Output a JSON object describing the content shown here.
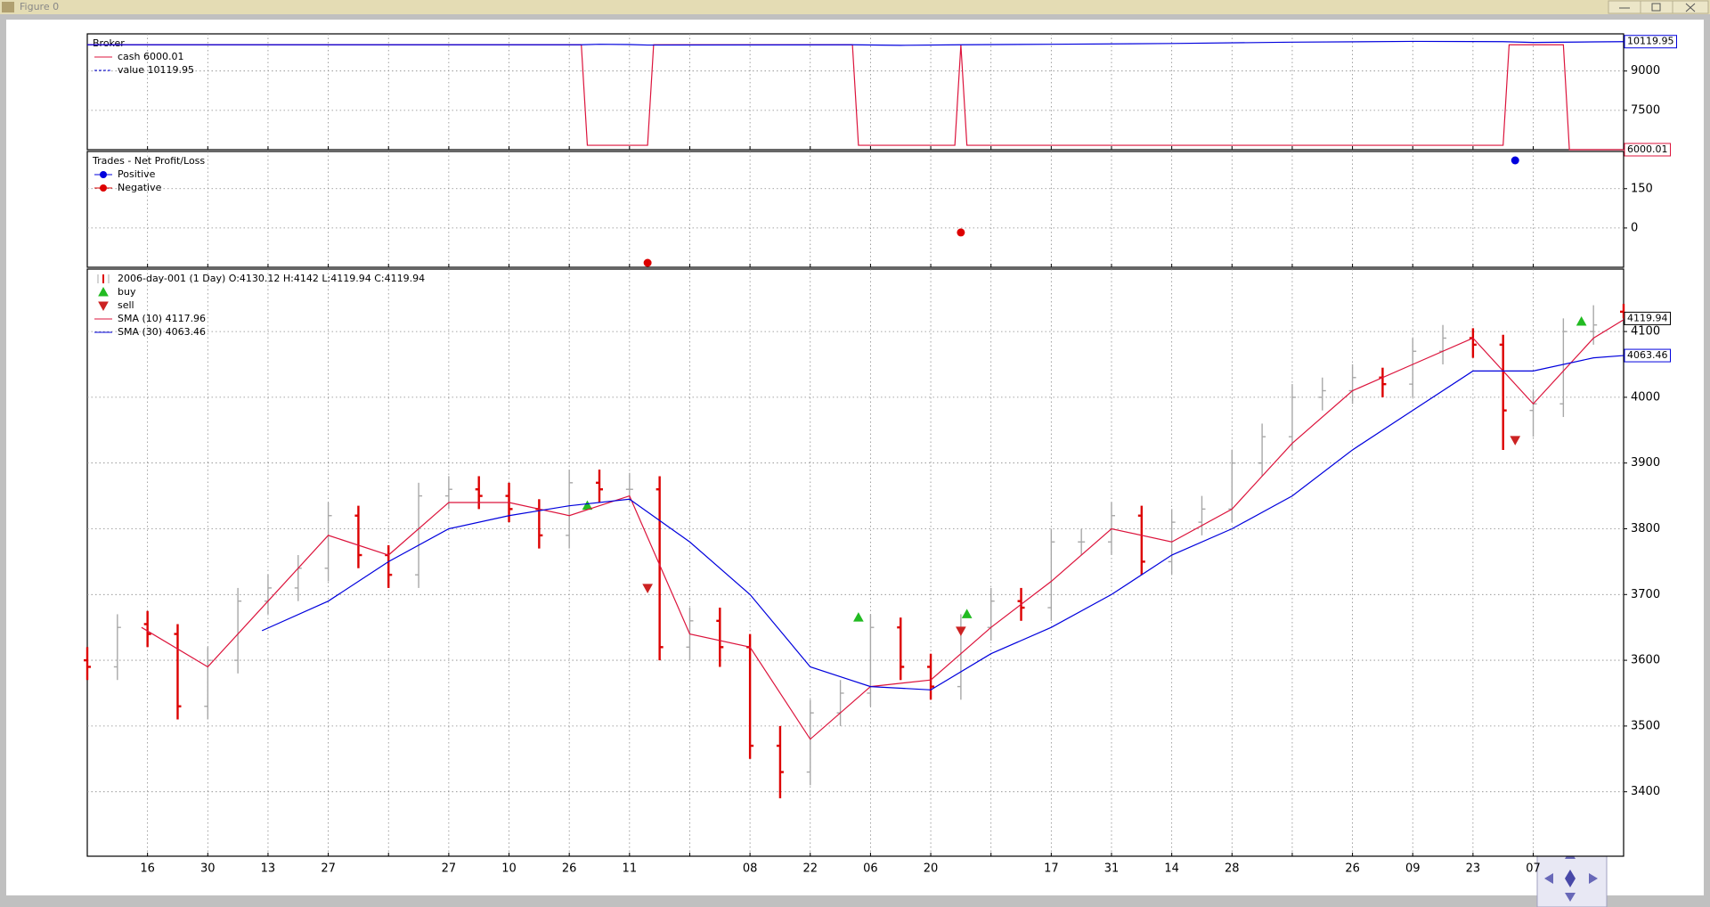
{
  "window_title": "Figure 0",
  "chart_data": [
    {
      "type": "line",
      "title": "Broker",
      "legend": "upper left",
      "grid": true,
      "xlim": [
        0,
        255
      ],
      "xticks": [
        10,
        20,
        30,
        40,
        50,
        60,
        70,
        80,
        90,
        100,
        110,
        120,
        130,
        140,
        150,
        160,
        170,
        180,
        190,
        200,
        210,
        220,
        230,
        240
      ],
      "ylim": [
        6000,
        10417
      ],
      "yticks": [
        7500,
        9000
      ],
      "series": [
        {
          "name": "cash 6000.01",
          "color": "#dc143c",
          "x": [
            0,
            82,
            83,
            93,
            94,
            127,
            128,
            144,
            145,
            146,
            235,
            236,
            245,
            246,
            255
          ],
          "values": [
            10000,
            10000,
            6167,
            6167,
            10000,
            10000,
            6167,
            6167,
            10000,
            6167,
            6167,
            10000,
            10000,
            6000.01,
            6000.01
          ]
        },
        {
          "name": "value 10119.95",
          "color": "#0000dd",
          "x": [
            0,
            82,
            85,
            90,
            93,
            127,
            135,
            145,
            160,
            180,
            200,
            220,
            235,
            240,
            250,
            255
          ],
          "values": [
            10000,
            10000,
            10020,
            10010,
            9990,
            10000,
            9980,
            10000,
            10020,
            10050,
            10100,
            10130,
            10120,
            10090,
            10110,
            10119.95
          ]
        }
      ]
    },
    {
      "type": "scatter",
      "title": "Trades - Net Profit/Loss",
      "legend": "upper left",
      "grid": true,
      "xlim": [
        0,
        255
      ],
      "xticks": [
        10,
        20,
        30,
        40,
        50,
        60,
        70,
        80,
        90,
        100,
        110,
        120,
        130,
        140,
        150,
        160,
        170,
        180,
        190,
        200,
        210,
        220,
        230,
        240
      ],
      "ylim": [
        -150,
        292
      ],
      "yticks": [
        0,
        150
      ],
      "series": [
        {
          "name": "Positive",
          "color": "#0000dd",
          "x": [
            237
          ],
          "values": [
            258
          ]
        },
        {
          "name": "Negative",
          "color": "#dd0000",
          "x": [
            93,
            145
          ],
          "values": [
            -133,
            -17
          ]
        }
      ]
    },
    {
      "type": "ohlc",
      "legend": "upper left",
      "grid": true,
      "xlim": [
        0,
        255
      ],
      "xticks": [
        {
          "value": 10,
          "label": "16"
        },
        {
          "value": 20,
          "label": "30"
        },
        {
          "value": 30,
          "label": "13"
        },
        {
          "value": 40,
          "label": "27"
        },
        {
          "value": 50,
          "label": null
        },
        {
          "value": 60,
          "label": "27"
        },
        {
          "value": 70,
          "label": "10"
        },
        {
          "value": 80,
          "label": "26"
        },
        {
          "value": 90,
          "label": "11"
        },
        {
          "value": 100,
          "label": null
        },
        {
          "value": 110,
          "label": "08"
        },
        {
          "value": 120,
          "label": "22"
        },
        {
          "value": 130,
          "label": "06"
        },
        {
          "value": 140,
          "label": "20"
        },
        {
          "value": 150,
          "label": null
        },
        {
          "value": 160,
          "label": "17"
        },
        {
          "value": 170,
          "label": "31"
        },
        {
          "value": 180,
          "label": "14"
        },
        {
          "value": 190,
          "label": "28"
        },
        {
          "value": 200,
          "label": null
        },
        {
          "value": 210,
          "label": "26"
        },
        {
          "value": 220,
          "label": "09"
        },
        {
          "value": 230,
          "label": "23"
        },
        {
          "value": 240,
          "label": "07"
        }
      ],
      "ylim": [
        3302,
        4195
      ],
      "yticks": [
        3400,
        3500,
        3600,
        3700,
        3800,
        3900,
        4000,
        4100
      ],
      "ohlc": {
        "name": "2006-day-001 (1 Day) O:4130.12 H:4142 L:4119.94 C:4119.94",
        "up_color": "#a8a8a8",
        "down_color": "#dd0000",
        "x": [
          0,
          5,
          10,
          15,
          20,
          25,
          30,
          35,
          40,
          45,
          50,
          55,
          60,
          65,
          70,
          75,
          80,
          85,
          90,
          95,
          100,
          105,
          110,
          115,
          120,
          125,
          130,
          135,
          140,
          145,
          150,
          155,
          160,
          165,
          170,
          175,
          180,
          185,
          190,
          195,
          200,
          205,
          210,
          215,
          220,
          225,
          230,
          235,
          240,
          245,
          250,
          255
        ],
        "open": [
          3600,
          3590,
          3655,
          3640,
          3530,
          3600,
          3690,
          3710,
          3740,
          3820,
          3760,
          3730,
          3850,
          3860,
          3850,
          3830,
          3790,
          3870,
          3860,
          3860,
          3620,
          3660,
          3620,
          3470,
          3430,
          3520,
          3550,
          3650,
          3590,
          3560,
          3650,
          3690,
          3680,
          3780,
          3780,
          3820,
          3750,
          3810,
          3830,
          3900,
          3940,
          4000,
          4010,
          4030,
          4020,
          4070,
          4090,
          4080,
          3980,
          3990,
          4100,
          4130.12
        ],
        "high": [
          3620,
          3670,
          3675,
          3655,
          3620,
          3710,
          3730,
          3760,
          3840,
          3835,
          3775,
          3870,
          3880,
          3880,
          3870,
          3845,
          3890,
          3890,
          3885,
          3880,
          3680,
          3680,
          3640,
          3500,
          3540,
          3570,
          3670,
          3665,
          3610,
          3670,
          3710,
          3710,
          3800,
          3800,
          3840,
          3835,
          3830,
          3850,
          3920,
          3960,
          4020,
          4030,
          4050,
          4045,
          4090,
          4110,
          4105,
          4095,
          4010,
          4120,
          4140,
          4142
        ],
        "low": [
          3570,
          3570,
          3620,
          3510,
          3510,
          3580,
          3670,
          3690,
          3720,
          3740,
          3710,
          3710,
          3830,
          3830,
          3810,
          3770,
          3770,
          3840,
          3840,
          3600,
          3600,
          3590,
          3450,
          3390,
          3410,
          3500,
          3530,
          3570,
          3540,
          3540,
          3630,
          3660,
          3660,
          3760,
          3760,
          3730,
          3730,
          3790,
          3810,
          3880,
          3920,
          3980,
          3990,
          4000,
          4000,
          4050,
          4060,
          3920,
          3940,
          3970,
          4080,
          4119.94
        ],
        "close": [
          3590,
          3650,
          3640,
          3530,
          3600,
          3690,
          3710,
          3740,
          3820,
          3760,
          3730,
          3850,
          3860,
          3850,
          3830,
          3790,
          3870,
          3860,
          3860,
          3620,
          3660,
          3620,
          3470,
          3430,
          3520,
          3550,
          3650,
          3590,
          3560,
          3650,
          3690,
          3680,
          3780,
          3780,
          3820,
          3750,
          3810,
          3830,
          3900,
          3940,
          4000,
          4010,
          4030,
          4020,
          4070,
          4090,
          4080,
          3980,
          3990,
          4100,
          4110,
          4119.94
        ]
      },
      "series": [
        {
          "name": "buy",
          "marker": "up",
          "color": "#22bb22",
          "x": [
            83,
            128,
            146,
            248
          ],
          "values": [
            3835,
            3665,
            3670,
            4115
          ]
        },
        {
          "name": "sell",
          "marker": "down",
          "color": "#cc2222",
          "x": [
            93,
            145,
            237
          ],
          "values": [
            3710,
            3645,
            3935
          ]
        },
        {
          "name": "SMA (10) 4117.96",
          "color": "#dc143c",
          "x": [
            9,
            20,
            30,
            40,
            50,
            60,
            70,
            80,
            90,
            100,
            110,
            120,
            130,
            140,
            150,
            160,
            170,
            180,
            190,
            200,
            210,
            220,
            230,
            240,
            250,
            255
          ],
          "values": [
            3650,
            3590,
            3690,
            3790,
            3760,
            3840,
            3840,
            3820,
            3850,
            3640,
            3620,
            3480,
            3560,
            3570,
            3650,
            3720,
            3800,
            3780,
            3830,
            3930,
            4010,
            4050,
            4090,
            3990,
            4090,
            4117.96
          ]
        },
        {
          "name": "SMA (30) 4063.46",
          "color": "#0000dd",
          "x": [
            29,
            40,
            50,
            60,
            70,
            80,
            90,
            100,
            110,
            120,
            130,
            140,
            150,
            160,
            170,
            180,
            190,
            200,
            210,
            220,
            230,
            240,
            250,
            255
          ],
          "values": [
            3645,
            3690,
            3750,
            3800,
            3820,
            3835,
            3845,
            3780,
            3700,
            3590,
            3560,
            3555,
            3610,
            3650,
            3700,
            3760,
            3800,
            3850,
            3920,
            3980,
            4040,
            4040,
            4060,
            4063.46
          ]
        }
      ]
    }
  ]
}
